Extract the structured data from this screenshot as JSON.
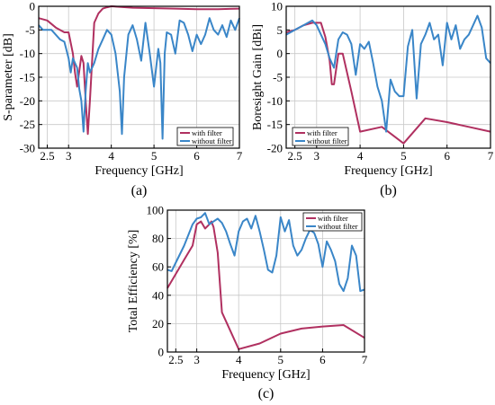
{
  "chart_data": [
    {
      "panel": "(a)",
      "type": "line",
      "xlabel": "Frequency [GHz]",
      "ylabel": "S-parameter [dB]",
      "xlim": [
        2.3,
        7
      ],
      "ylim": [
        -30,
        0
      ],
      "xticks": [
        2.5,
        3,
        4,
        5,
        6,
        7
      ],
      "xtick_labels": [
        "2.5",
        "3",
        "4",
        "5",
        "6",
        "7"
      ],
      "yticks": [
        0,
        -5,
        -10,
        -15,
        -20,
        -25,
        -30
      ],
      "ytick_labels": [
        "0",
        "-5",
        "-10",
        "-15",
        "-20",
        "-25",
        "-30"
      ],
      "grid": true,
      "legend": "bottom-right",
      "series": [
        {
          "name": "with filter",
          "color": "#b03060",
          "x": [
            2.3,
            2.5,
            2.7,
            2.9,
            3.0,
            3.1,
            3.15,
            3.2,
            3.3,
            3.35,
            3.4,
            3.45,
            3.5,
            3.6,
            3.7,
            3.8,
            3.9,
            4.0,
            4.5,
            5.0,
            5.5,
            6.0,
            6.5,
            7.0
          ],
          "y": [
            -2.5,
            -3.0,
            -4.5,
            -5.5,
            -5.5,
            -10.0,
            -14.0,
            -17.0,
            -10.5,
            -12.0,
            -20.0,
            -27.0,
            -20.0,
            -3.5,
            -1.5,
            -0.5,
            -0.2,
            0.0,
            -0.3,
            -0.4,
            -0.5,
            -0.6,
            -0.6,
            -0.5
          ]
        },
        {
          "name": "without filter",
          "color": "#3a86c8",
          "x": [
            2.3,
            2.4,
            2.6,
            2.8,
            2.9,
            3.0,
            3.05,
            3.1,
            3.2,
            3.25,
            3.3,
            3.35,
            3.4,
            3.45,
            3.5,
            3.6,
            3.7,
            3.8,
            3.9,
            4.0,
            4.1,
            4.2,
            4.25,
            4.3,
            4.4,
            4.5,
            4.6,
            4.7,
            4.8,
            4.9,
            5.0,
            5.1,
            5.15,
            5.2,
            5.25,
            5.3,
            5.4,
            5.5,
            5.6,
            5.7,
            5.8,
            5.9,
            6.0,
            6.1,
            6.2,
            6.3,
            6.4,
            6.5,
            6.6,
            6.7,
            6.8,
            6.9,
            7.0
          ],
          "y": [
            -4.0,
            -5.0,
            -5.0,
            -7.0,
            -7.5,
            -11.0,
            -14.0,
            -11.0,
            -13.0,
            -17.5,
            -20.0,
            -26.5,
            -18.0,
            -12.0,
            -14.0,
            -12.0,
            -9.0,
            -7.0,
            -5.0,
            -6.0,
            -10.0,
            -18.0,
            -27.0,
            -15.0,
            -6.0,
            -4.0,
            -7.0,
            -11.5,
            -3.5,
            -10.0,
            -17.0,
            -9.0,
            -12.0,
            -28.0,
            -10.0,
            -5.5,
            -6.0,
            -10.0,
            -3.0,
            -3.5,
            -6.0,
            -9.5,
            -6.0,
            -8.0,
            -6.0,
            -2.5,
            -5.0,
            -6.0,
            -4.0,
            -6.5,
            -3.0,
            -5.0,
            -2.5
          ]
        }
      ]
    },
    {
      "panel": "(b)",
      "type": "line",
      "xlabel": "Frequency [GHz]",
      "ylabel": "Boresight Gain [dBi]",
      "xlim": [
        2.3,
        7
      ],
      "ylim": [
        -20,
        10
      ],
      "xticks": [
        2.5,
        3,
        4,
        5,
        6,
        7
      ],
      "xtick_labels": [
        "2.5",
        "3",
        "4",
        "5",
        "6",
        "7"
      ],
      "yticks": [
        10,
        5,
        0,
        -5,
        -10,
        -15,
        -20
      ],
      "ytick_labels": [
        "10",
        "5",
        "0",
        "-5",
        "-10",
        "-15",
        "-20"
      ],
      "grid": true,
      "legend": "bottom-left",
      "series": [
        {
          "name": "with filter",
          "color": "#b03060",
          "x": [
            2.3,
            2.5,
            2.7,
            2.9,
            3.1,
            3.2,
            3.3,
            3.35,
            3.4,
            3.5,
            3.6,
            3.8,
            4.0,
            4.5,
            5.0,
            5.5,
            6.0,
            6.5,
            7.0
          ],
          "y": [
            4.5,
            5.0,
            6.0,
            6.5,
            6.5,
            3.5,
            -1.5,
            -6.5,
            -6.5,
            0.0,
            0.0,
            -8.0,
            -16.5,
            -15.5,
            -19.0,
            -13.7,
            -14.5,
            -15.5,
            -16.5
          ]
        },
        {
          "name": "without filter",
          "color": "#3a86c8",
          "x": [
            2.3,
            2.5,
            2.7,
            2.9,
            3.0,
            3.1,
            3.2,
            3.3,
            3.4,
            3.5,
            3.6,
            3.7,
            3.8,
            3.9,
            4.0,
            4.1,
            4.2,
            4.3,
            4.4,
            4.5,
            4.6,
            4.7,
            4.8,
            4.9,
            5.0,
            5.1,
            5.2,
            5.3,
            5.4,
            5.5,
            5.6,
            5.7,
            5.8,
            5.9,
            6.0,
            6.1,
            6.2,
            6.3,
            6.4,
            6.5,
            6.6,
            6.7,
            6.8,
            6.9,
            7.0
          ],
          "y": [
            4.0,
            5.0,
            6.0,
            7.0,
            6.0,
            4.0,
            2.0,
            -1.0,
            -3.0,
            3.0,
            4.5,
            4.0,
            2.0,
            -4.5,
            2.0,
            1.0,
            2.5,
            -2.0,
            -7.0,
            -10.0,
            -16.5,
            -5.5,
            -8.0,
            -9.0,
            -9.0,
            1.5,
            5.0,
            -9.5,
            2.0,
            4.0,
            6.5,
            3.0,
            4.0,
            -2.5,
            6.5,
            3.0,
            6.0,
            1.0,
            3.0,
            4.0,
            6.0,
            8.0,
            5.5,
            -1.0,
            -2.0
          ]
        }
      ]
    },
    {
      "panel": "(c)",
      "type": "line",
      "xlabel": "Frequency [GHz]",
      "ylabel": "Total Efficiency [%]",
      "xlim": [
        2.3,
        7
      ],
      "ylim": [
        0,
        100
      ],
      "xticks": [
        2.5,
        3,
        4,
        5,
        6,
        7
      ],
      "xtick_labels": [
        "2.5",
        "3",
        "4",
        "5",
        "6",
        "7"
      ],
      "yticks": [
        0,
        20,
        40,
        60,
        80,
        100
      ],
      "ytick_labels": [
        "0",
        "20",
        "40",
        "60",
        "80",
        "100"
      ],
      "grid": true,
      "legend": "top-right",
      "series": [
        {
          "name": "with filter",
          "color": "#b03060",
          "x": [
            2.3,
            2.5,
            2.7,
            2.9,
            3.0,
            3.1,
            3.2,
            3.3,
            3.35,
            3.4,
            3.5,
            3.6,
            3.8,
            4.0,
            4.5,
            5.0,
            5.5,
            6.0,
            6.5,
            7.0
          ],
          "y": [
            45.0,
            55.0,
            65.0,
            75.0,
            90.0,
            92.0,
            87.0,
            90.0,
            92.0,
            88.0,
            70.0,
            28.0,
            15.0,
            2.0,
            6.0,
            13.0,
            16.5,
            18.0,
            19.0,
            10.0
          ]
        },
        {
          "name": "without filter",
          "color": "#3a86c8",
          "x": [
            2.3,
            2.4,
            2.5,
            2.7,
            2.9,
            3.0,
            3.1,
            3.2,
            3.3,
            3.4,
            3.5,
            3.6,
            3.7,
            3.8,
            3.9,
            4.0,
            4.1,
            4.2,
            4.3,
            4.4,
            4.5,
            4.6,
            4.7,
            4.8,
            4.9,
            5.0,
            5.1,
            5.2,
            5.3,
            5.4,
            5.5,
            5.6,
            5.7,
            5.8,
            5.9,
            6.0,
            6.1,
            6.2,
            6.3,
            6.4,
            6.5,
            6.6,
            6.7,
            6.8,
            6.9,
            7.0
          ],
          "y": [
            58.0,
            57.0,
            63.0,
            75.0,
            90.0,
            94.0,
            95.0,
            98.0,
            90.0,
            92.0,
            94.0,
            91.0,
            85.0,
            76.0,
            68.0,
            85.0,
            92.0,
            94.0,
            87.0,
            96.0,
            85.0,
            72.0,
            58.0,
            56.0,
            68.0,
            95.0,
            85.0,
            93.0,
            75.0,
            68.0,
            72.0,
            80.0,
            86.0,
            84.0,
            76.0,
            60.0,
            78.0,
            72.0,
            64.0,
            48.0,
            43.0,
            52.0,
            75.0,
            68.0,
            43.0,
            44.0
          ]
        }
      ]
    }
  ],
  "captions": [
    "(a)",
    "(b)",
    "(c)"
  ]
}
